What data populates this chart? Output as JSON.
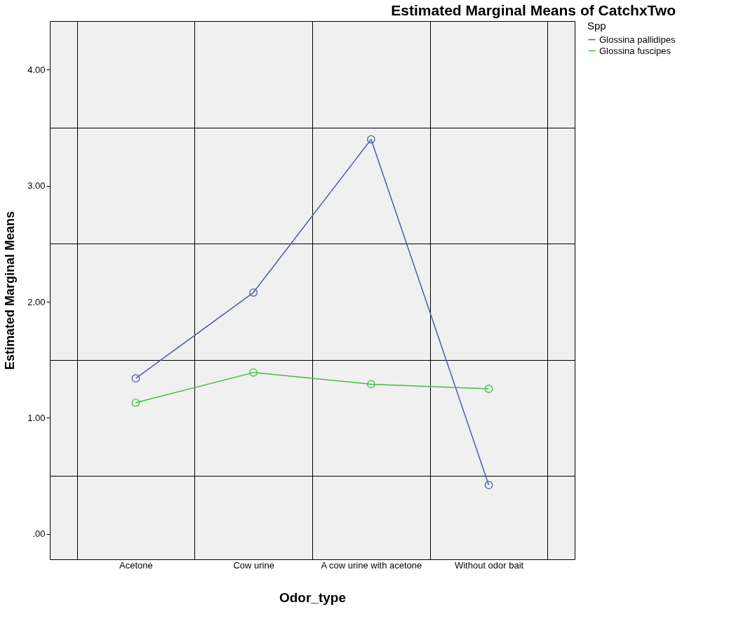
{
  "chart_data": {
    "type": "line",
    "title": "Estimated Marginal Means of CatchxTwo",
    "xlabel": "Odor_type",
    "ylabel": "Estimated Marginal Means",
    "legend_title": "Spp",
    "categories": [
      "Acetone",
      "Cow urine",
      "A cow urine with acetone",
      "Without odor bait"
    ],
    "series": [
      {
        "name": "Glossina pallidipes",
        "color": "#4a5ea8",
        "values": [
          1.34,
          2.08,
          3.4,
          0.42
        ]
      },
      {
        "name": "Glossina fuscipes",
        "color": "#3fbf3f",
        "values": [
          1.13,
          1.39,
          1.29,
          1.25
        ]
      }
    ],
    "ylim": [
      -0.22,
      4.42
    ],
    "yticks": [
      {
        "value": 0,
        "label": ".00"
      },
      {
        "value": 0.5,
        "label": null
      },
      {
        "value": 1,
        "label": "1.00"
      },
      {
        "value": 1.5,
        "label": null
      },
      {
        "value": 2,
        "label": "2.00"
      },
      {
        "value": 2.5,
        "label": null
      },
      {
        "value": 3,
        "label": "3.00"
      },
      {
        "value": 3.5,
        "label": null
      },
      {
        "value": 4,
        "label": "4.00"
      }
    ],
    "grid": true,
    "legend": "top right",
    "marker": "circle",
    "line_style": "solid"
  }
}
